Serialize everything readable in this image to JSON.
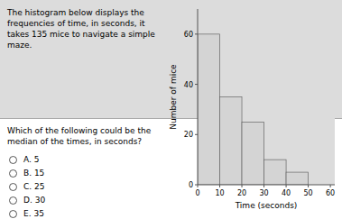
{
  "chart_data": {
    "type": "histogram",
    "title": "The histogram below displays the frequencies of time, in seconds, it takes 135 mice to navigate a simple maze.",
    "xlabel": "Time (seconds)",
    "ylabel": "Number of mice",
    "bins": [
      0,
      10,
      20,
      30,
      40,
      50,
      60
    ],
    "values": [
      60,
      35,
      25,
      10,
      5,
      0
    ],
    "color": "#d4d4d4",
    "xlim": [
      0,
      62
    ],
    "ylim": [
      0,
      70
    ],
    "xticks": [
      0,
      10,
      20,
      30,
      40,
      50,
      60
    ],
    "yticks": [
      0,
      20,
      40,
      60
    ],
    "annotations": [
      "Which of the following could be the median of the times, in seconds?",
      "A.   5",
      "B.   15",
      "C.   25",
      "D.   30",
      "E.   35"
    ]
  }
}
